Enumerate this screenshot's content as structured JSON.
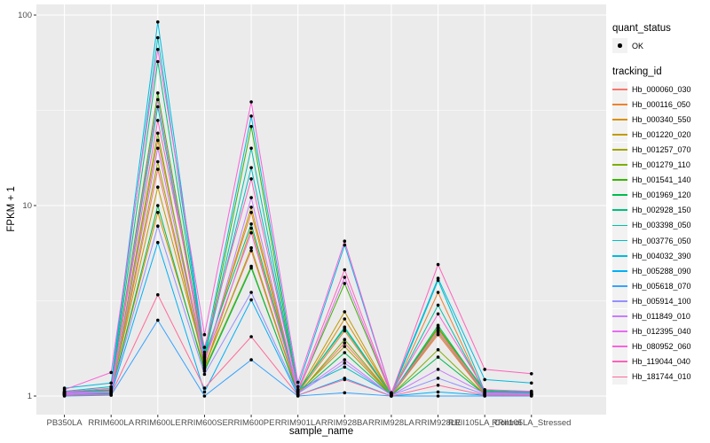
{
  "figure": {
    "colors": {
      "panel_bg": "#EBEBEB",
      "grid": "#FFFFFF",
      "tick": "#333333",
      "tick_text": "#4D4D4D",
      "axis_title": "#000000",
      "point": "#000000",
      "legend_key_bg": "#F2F2F2"
    },
    "legend": {
      "quant_status": {
        "title": "quant_status",
        "items": [
          {
            "label": "OK",
            "marker": "point"
          }
        ]
      },
      "tracking_id": {
        "title": "tracking_id"
      }
    }
  },
  "chart_data": {
    "type": "line",
    "title": "",
    "xlabel": "sample_name",
    "ylabel": "FPKM + 1",
    "yscale": "log10",
    "ylim": [
      0.79,
      114
    ],
    "yticks": [
      1,
      10,
      100
    ],
    "ytick_labels": [
      "1",
      "10",
      "100"
    ],
    "minor_gridlines": [
      3.1623,
      31.623
    ],
    "grid": true,
    "legend_position": "right",
    "point_marker": {
      "shape": "circle",
      "color": "#000000"
    },
    "categories": [
      "PB350LA",
      "RRIM600LA",
      "RRIM600LE",
      "RRIM600SE",
      "RRIM600PE",
      "RRIM901LA",
      "RRIM928BA",
      "RRIM928LA",
      "RRIM928LE",
      "RRII105LA_Control",
      "RRII105LA_Stressed"
    ],
    "series": [
      {
        "name": "Hb_000060_030",
        "color": "#F8766D",
        "values": [
          1.02,
          1.03,
          15.5,
          1.45,
          5.8,
          1.03,
          1.9,
          1.01,
          2.1,
          1.02,
          1.02
        ]
      },
      {
        "name": "Hb_000116_050",
        "color": "#EA8331",
        "values": [
          1.03,
          1.05,
          22.0,
          1.55,
          9.2,
          1.04,
          2.2,
          1.01,
          3.5,
          1.03,
          1.02
        ]
      },
      {
        "name": "Hb_000340_550",
        "color": "#D89000",
        "values": [
          1.02,
          1.04,
          9.2,
          1.4,
          7.6,
          1.03,
          2.54,
          1.02,
          2.3,
          1.02,
          1.03
        ]
      },
      {
        "name": "Hb_001220_020",
        "color": "#C09B00",
        "values": [
          1.04,
          1.06,
          12.5,
          1.5,
          9.8,
          1.05,
          2.77,
          1.02,
          2.25,
          1.04,
          1.03
        ]
      },
      {
        "name": "Hb_001257_070",
        "color": "#A3A500",
        "values": [
          1.03,
          1.04,
          17.0,
          1.42,
          6.0,
          1.04,
          1.82,
          1.01,
          2.15,
          1.03,
          1.02
        ]
      },
      {
        "name": "Hb_001279_110",
        "color": "#7CAE00",
        "values": [
          1.02,
          1.03,
          24.0,
          1.38,
          4.8,
          1.02,
          1.98,
          1.01,
          1.75,
          1.02,
          1.02
        ]
      },
      {
        "name": "Hb_001541_140",
        "color": "#39B600",
        "values": [
          1.04,
          1.07,
          39.0,
          1.6,
          26.0,
          1.06,
          3.9,
          1.02,
          2.28,
          1.07,
          1.05
        ]
      },
      {
        "name": "Hb_001969_120",
        "color": "#00BB4E",
        "values": [
          1.02,
          1.03,
          10.0,
          1.35,
          4.7,
          1.03,
          1.69,
          1.01,
          1.6,
          1.02,
          1.02
        ]
      },
      {
        "name": "Hb_002928_150",
        "color": "#00BF7D",
        "values": [
          1.05,
          1.08,
          57.0,
          1.62,
          8.0,
          1.07,
          2.26,
          1.02,
          2.35,
          1.05,
          1.04
        ]
      },
      {
        "name": "Hb_003398_050",
        "color": "#00C1A3",
        "values": [
          1.04,
          1.08,
          33.0,
          1.58,
          20.0,
          1.06,
          2.3,
          1.02,
          3.0,
          1.05,
          1.04
        ]
      },
      {
        "name": "Hb_003776_050",
        "color": "#00BFC4",
        "values": [
          1.06,
          1.12,
          76.0,
          1.65,
          15.8,
          1.08,
          1.42,
          1.02,
          4.05,
          1.06,
          1.05
        ]
      },
      {
        "name": "Hb_004032_390",
        "color": "#00BAE0",
        "values": [
          1.1,
          1.17,
          92.0,
          1.7,
          29.5,
          1.12,
          6.2,
          1.04,
          4.15,
          1.22,
          1.17
        ]
      },
      {
        "name": "Hb_005288_090",
        "color": "#00B0F6",
        "values": [
          1.01,
          1.02,
          6.4,
          1.05,
          3.2,
          1.01,
          1.24,
          1.0,
          1.05,
          1.01,
          1.01
        ]
      },
      {
        "name": "Hb_005618_070",
        "color": "#35A2FF",
        "values": [
          1.0,
          1.01,
          2.5,
          1.0,
          1.55,
          1.0,
          1.04,
          1.0,
          1.0,
          1.0,
          1.0
        ]
      },
      {
        "name": "Hb_005914_100",
        "color": "#9590FF",
        "values": [
          1.02,
          1.04,
          7.8,
          1.3,
          3.5,
          1.03,
          1.49,
          1.01,
          1.24,
          1.02,
          1.02
        ]
      },
      {
        "name": "Hb_011849_010",
        "color": "#C77CFF",
        "values": [
          1.03,
          1.05,
          20.0,
          1.48,
          11.0,
          1.04,
          1.55,
          1.01,
          1.38,
          1.03,
          1.02
        ]
      },
      {
        "name": "Hb_012395_040",
        "color": "#E76BF3",
        "values": [
          1.04,
          1.06,
          36.0,
          1.52,
          7.2,
          1.05,
          4.2,
          1.02,
          2.2,
          1.04,
          1.03
        ]
      },
      {
        "name": "Hb_080952_060",
        "color": "#FA62DB",
        "values": [
          1.08,
          1.33,
          66.0,
          2.1,
          35.0,
          1.18,
          6.5,
          1.04,
          2.7,
          1.08,
          1.06
        ]
      },
      {
        "name": "Hb_119044_040",
        "color": "#FF62BC",
        "values": [
          1.05,
          1.1,
          28.0,
          1.8,
          13.8,
          1.08,
          4.6,
          1.03,
          4.9,
          1.38,
          1.31
        ]
      },
      {
        "name": "Hb_181744_010",
        "color": "#FF6A98",
        "values": [
          1.01,
          1.02,
          3.4,
          1.1,
          2.05,
          1.01,
          1.22,
          1.0,
          1.14,
          1.01,
          1.01
        ]
      }
    ]
  }
}
